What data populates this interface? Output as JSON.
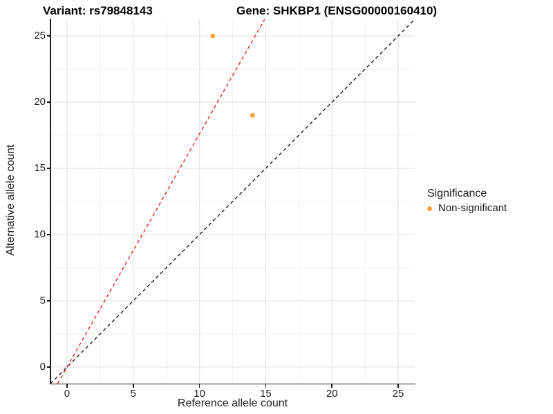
{
  "titles": {
    "variant": "Variant: rs79848143",
    "gene": "Gene: SHKBP1 (ENSG00000160410)"
  },
  "axes": {
    "x": {
      "label": "Reference allele count",
      "ticks": [
        0,
        5,
        10,
        15,
        20,
        25
      ],
      "minor_ticks": [
        2.5,
        7.5,
        12.5,
        17.5,
        22.5
      ]
    },
    "y": {
      "label": "Alternative allele count",
      "ticks": [
        0,
        5,
        10,
        15,
        20,
        25
      ],
      "minor_ticks": [
        2.5,
        7.5,
        12.5,
        17.5,
        22.5
      ]
    }
  },
  "legend": {
    "title": "Significance",
    "items": [
      {
        "label": "Non-significant",
        "color": "#F9A333"
      }
    ]
  },
  "colors": {
    "point": "#F9A333",
    "identity_line": "#1A1A1A",
    "ratio_line": "#E8251F",
    "grid_major": "#E6E6E6",
    "grid_minor": "#F2F2F2",
    "axis": "#1A1A1A"
  },
  "chart_data": {
    "type": "scatter",
    "title": "Variant: rs79848143 — Gene: SHKBP1 (ENSG00000160410)",
    "xlabel": "Reference allele count",
    "ylabel": "Alternative allele count",
    "xlim": [
      -1.25,
      26.25
    ],
    "ylim": [
      -1.25,
      26.25
    ],
    "grid": true,
    "legend_position": "right",
    "series": [
      {
        "name": "Non-significant",
        "color": "#F9A333",
        "points": [
          {
            "x": 11,
            "y": 25
          },
          {
            "x": 14,
            "y": 19
          }
        ]
      }
    ],
    "reference_lines": [
      {
        "name": "identity-line",
        "slope": 1,
        "intercept": 0,
        "color": "#1A1A1A",
        "style": "dashed"
      },
      {
        "name": "allelic-ratio-line",
        "slope": 1.76,
        "intercept": 0,
        "color": "#E8251F",
        "style": "dashed"
      }
    ]
  }
}
